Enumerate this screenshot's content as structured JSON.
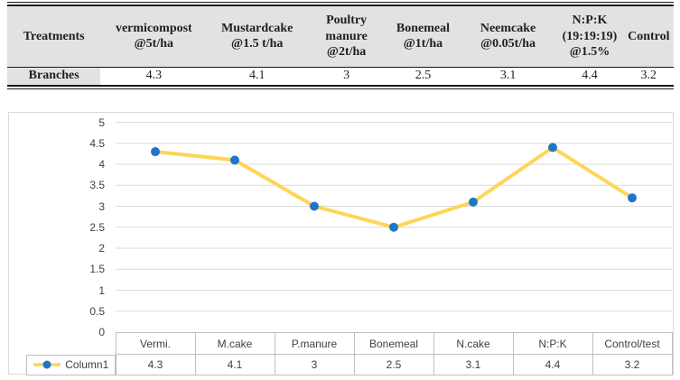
{
  "treatments_table": {
    "header": [
      "Treatments",
      "vermicompost @5t/ha",
      "Mustardcake @1.5 t/ha",
      "Poultry manure @2t/ha",
      "Bonemeal @1t/ha",
      "Neemcake @0.05t/ha",
      "N:P:K (19:19:19) @1.5%",
      "Control"
    ],
    "row_label": "Branches",
    "row_values": [
      "4.3",
      "4.1",
      "3",
      "2.5",
      "3.1",
      "4.4",
      "3.2"
    ]
  },
  "chart_data": {
    "type": "line",
    "title": "",
    "xlabel": "",
    "ylabel": "",
    "categories": [
      "Vermi.",
      "M.cake",
      "P.manure",
      "Bonemeal",
      "N.cake",
      "N:P:K",
      "Control/test"
    ],
    "series": [
      {
        "name": "Column1",
        "values": [
          4.3,
          4.1,
          3,
          2.5,
          3.1,
          4.4,
          3.2
        ]
      }
    ],
    "ylim": [
      0,
      5
    ],
    "yticks": [
      "0",
      "0.5",
      "1",
      "1.5",
      "2",
      "2.5",
      "3",
      "3.5",
      "4",
      "4.5",
      "5"
    ],
    "grid": true,
    "legend_position": "bottom-left of data table",
    "line_color": "#FFD557",
    "marker_color": "#2075C7",
    "grid_color": "#d9d9d9",
    "table_border_color": "#bfbfbf"
  }
}
